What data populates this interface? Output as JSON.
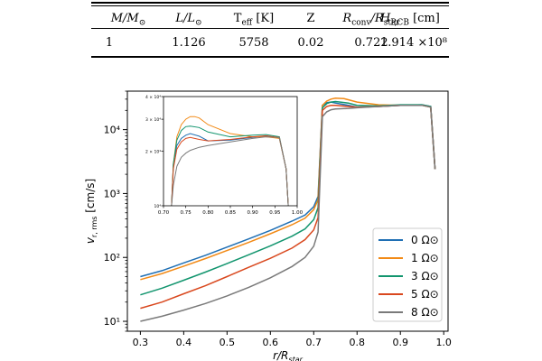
{
  "table": {
    "headers": [
      {
        "main": "M/M",
        "sub": "⊙",
        "italic": true
      },
      {
        "main": "L/L",
        "sub": "⊙",
        "italic": true
      },
      {
        "main": "T",
        "sub": "eff",
        "suffix": " [K]",
        "italic": false
      },
      {
        "main": "Z",
        "sub": "",
        "italic": false
      },
      {
        "main": "R",
        "sub": "conv",
        "mid": "/R",
        "sub2": "star",
        "italic": true
      },
      {
        "main": "H",
        "sub": "P,CB",
        "suffix": " [cm]",
        "italic": true
      }
    ],
    "row": [
      "1",
      "1.126",
      "5758",
      "0.02",
      "0.722",
      "1.914 ×10⁸"
    ]
  },
  "chart_data": {
    "type": "line",
    "xlabel": "r/R_star",
    "ylabel": "v_r,rms [cm/s]",
    "yscale": "log",
    "xlim": [
      0.27,
      1.01
    ],
    "ylim": [
      7,
      40000
    ],
    "xticks": [
      "0.3",
      "0.4",
      "0.5",
      "0.6",
      "0.7",
      "0.8",
      "0.9",
      "1.0"
    ],
    "yticks": [
      "10¹",
      "10²",
      "10³",
      "10⁴"
    ],
    "series": [
      {
        "name": "0 Ω⊙",
        "color": "#1f6fb4",
        "x": [
          0.3,
          0.35,
          0.4,
          0.45,
          0.5,
          0.55,
          0.6,
          0.65,
          0.68,
          0.7,
          0.71,
          0.72,
          0.73,
          0.74,
          0.75,
          0.78,
          0.8,
          0.85,
          0.9,
          0.95,
          0.97,
          0.98
        ],
        "y": [
          50,
          62,
          82,
          108,
          145,
          195,
          265,
          370,
          460,
          620,
          900,
          24000,
          26500,
          27000,
          26000,
          24000,
          22500,
          23000,
          24000,
          24500,
          23000,
          2400
        ]
      },
      {
        "name": "1 Ω⊙",
        "color": "#f28a16",
        "x": [
          0.3,
          0.35,
          0.4,
          0.45,
          0.5,
          0.55,
          0.6,
          0.65,
          0.68,
          0.7,
          0.71,
          0.72,
          0.73,
          0.74,
          0.75,
          0.77,
          0.8,
          0.85,
          0.9,
          0.95,
          0.97,
          0.98
        ],
        "y": [
          45,
          56,
          73,
          96,
          128,
          172,
          235,
          325,
          410,
          560,
          800,
          24000,
          28000,
          30000,
          31000,
          30500,
          27000,
          24500,
          24000,
          24000,
          22500,
          2400
        ]
      },
      {
        "name": "3 Ω⊙",
        "color": "#12956e",
        "x": [
          0.3,
          0.35,
          0.4,
          0.45,
          0.5,
          0.55,
          0.6,
          0.65,
          0.68,
          0.7,
          0.71,
          0.72,
          0.73,
          0.74,
          0.75,
          0.78,
          0.8,
          0.85,
          0.9,
          0.95,
          0.97,
          0.98
        ],
        "y": [
          26,
          33,
          44,
          59,
          80,
          110,
          152,
          215,
          280,
          390,
          600,
          22000,
          25500,
          27000,
          27500,
          26000,
          24000,
          23500,
          24500,
          24500,
          23000,
          2400
        ]
      },
      {
        "name": "5 Ω⊙",
        "color": "#d9481e",
        "x": [
          0.3,
          0.35,
          0.4,
          0.45,
          0.5,
          0.55,
          0.6,
          0.65,
          0.68,
          0.7,
          0.71,
          0.72,
          0.73,
          0.74,
          0.75,
          0.78,
          0.8,
          0.85,
          0.9,
          0.95,
          0.97,
          0.98
        ],
        "y": [
          16,
          20,
          27,
          36,
          50,
          70,
          97,
          140,
          190,
          270,
          420,
          20000,
          23000,
          24000,
          24000,
          23000,
          22500,
          23000,
          24000,
          24000,
          22500,
          2400
        ]
      },
      {
        "name": "8 Ω⊙",
        "color": "#7a7a7a",
        "x": [
          0.3,
          0.35,
          0.4,
          0.45,
          0.5,
          0.55,
          0.6,
          0.65,
          0.68,
          0.7,
          0.71,
          0.72,
          0.73,
          0.74,
          0.75,
          0.78,
          0.8,
          0.85,
          0.9,
          0.95,
          0.97,
          0.98
        ],
        "y": [
          10,
          12,
          15,
          19,
          25,
          34,
          48,
          72,
          100,
          150,
          250,
          16000,
          19000,
          20500,
          21000,
          21500,
          22000,
          23000,
          24000,
          24000,
          22500,
          2400
        ]
      }
    ],
    "inset": {
      "xlim": [
        0.7,
        1.0
      ],
      "ylim": [
        10000,
        40000
      ],
      "xticks": [
        "0.70",
        "0.75",
        "0.80",
        "0.85",
        "0.90",
        "0.95",
        "1.00"
      ],
      "yticks": [
        "10⁴",
        "2 × 10⁴",
        "3 × 10⁴",
        "4 × 10⁴"
      ],
      "series": [
        {
          "name": "0 Ω⊙",
          "color": "#1f6fb4",
          "x": [
            0.718,
            0.722,
            0.73,
            0.74,
            0.75,
            0.76,
            0.78,
            0.8,
            0.85,
            0.9,
            0.93,
            0.96,
            0.975,
            0.98
          ],
          "y": [
            10000,
            17000,
            21500,
            23500,
            24500,
            25000,
            24200,
            22800,
            23000,
            23800,
            24300,
            23500,
            16000,
            10000
          ]
        },
        {
          "name": "1 Ω⊙",
          "color": "#f28a16",
          "x": [
            0.718,
            0.722,
            0.73,
            0.74,
            0.75,
            0.76,
            0.77,
            0.78,
            0.8,
            0.85,
            0.9,
            0.93,
            0.96,
            0.975,
            0.98
          ],
          "y": [
            10000,
            17000,
            24000,
            28000,
            30000,
            31000,
            31000,
            30500,
            28000,
            25000,
            24000,
            24000,
            23500,
            16000,
            10000
          ]
        },
        {
          "name": "3 Ω⊙",
          "color": "#12956e",
          "x": [
            0.718,
            0.722,
            0.73,
            0.74,
            0.75,
            0.76,
            0.78,
            0.8,
            0.85,
            0.9,
            0.93,
            0.96,
            0.975,
            0.98
          ],
          "y": [
            10000,
            17000,
            23000,
            26000,
            27300,
            27500,
            27000,
            25500,
            24000,
            24500,
            24700,
            24000,
            16000,
            10000
          ]
        },
        {
          "name": "5 Ω⊙",
          "color": "#d9481e",
          "x": [
            0.718,
            0.722,
            0.73,
            0.74,
            0.75,
            0.76,
            0.78,
            0.8,
            0.85,
            0.9,
            0.93,
            0.96,
            0.975,
            0.98
          ],
          "y": [
            10000,
            16000,
            20500,
            22500,
            23500,
            23800,
            23200,
            22800,
            23200,
            24000,
            24300,
            23800,
            16000,
            10000
          ]
        },
        {
          "name": "8 Ω⊙",
          "color": "#7a7a7a",
          "x": [
            0.718,
            0.722,
            0.73,
            0.74,
            0.75,
            0.76,
            0.78,
            0.8,
            0.85,
            0.9,
            0.93,
            0.96,
            0.975,
            0.98
          ],
          "y": [
            10000,
            13000,
            16500,
            18500,
            19500,
            20200,
            21000,
            21500,
            22500,
            23500,
            24000,
            23800,
            16000,
            10000
          ]
        }
      ]
    }
  }
}
